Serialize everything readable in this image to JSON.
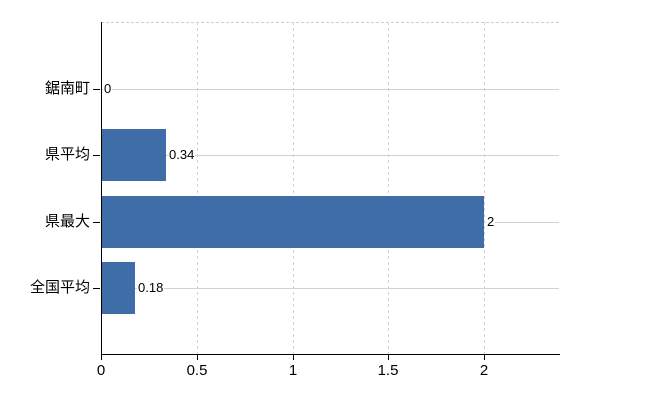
{
  "chart_data": {
    "type": "bar",
    "orientation": "horizontal",
    "title": "",
    "xlabel": "",
    "ylabel": "",
    "categories": [
      "鋸南町",
      "県平均",
      "県最大",
      "全国平均"
    ],
    "values": [
      0,
      0.34,
      2,
      0.18
    ],
    "value_labels": [
      "0",
      "0.34",
      "2",
      "0.18"
    ],
    "x_ticks": [
      0,
      0.5,
      1,
      1.5,
      2
    ],
    "x_tick_labels": [
      "0",
      "0.5",
      "1",
      "1.5",
      "2"
    ],
    "xlim": [
      0,
      2.4
    ],
    "grid": true,
    "legend": false,
    "colors": {
      "bar": "#3f6da8",
      "h_gridline": "#ccd5cb",
      "v_gridline": "#d8d0d9",
      "plot_top_border": "#d2ccd2",
      "axis": "#000000",
      "text": "#000000",
      "background": "#ffffff"
    }
  }
}
